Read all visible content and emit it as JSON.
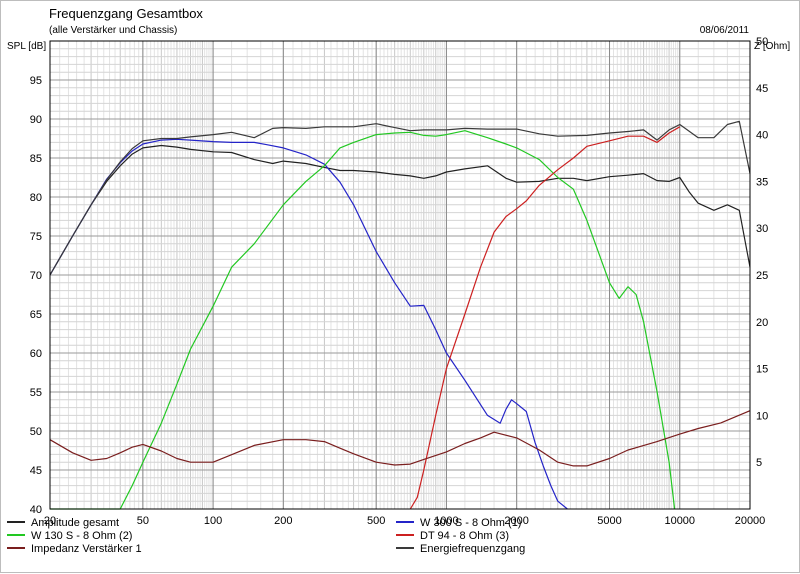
{
  "header": {
    "title": "Frequenzgang Gesamtbox",
    "subtitle": "(alle Verstärker und Chassis)",
    "date": "08/06/2011"
  },
  "chart_data": {
    "type": "line",
    "title": "Frequenzgang Gesamtbox",
    "subtitle": "(alle Verstärker und Chassis)",
    "xscale": "log",
    "xlim": [
      20,
      20000
    ],
    "ylabel_left": "SPL [dB]",
    "ylim_left": [
      40,
      100
    ],
    "ylabel_right": "Z [Ohm]",
    "ylim_right": [
      0,
      50
    ],
    "grid": true,
    "x_ticks": [
      "20",
      "50",
      "100",
      "200",
      "500",
      "1000",
      "2000",
      "5000",
      "10000",
      "20000"
    ],
    "y_ticks_left": [
      "40",
      "45",
      "50",
      "55",
      "60",
      "65",
      "70",
      "75",
      "80",
      "85",
      "90",
      "95"
    ],
    "y_ticks_right": [
      "5",
      "10",
      "15",
      "20",
      "25",
      "30",
      "35",
      "40",
      "45",
      "50"
    ],
    "legend_position": "bottom",
    "series": [
      {
        "name": "Amplitude gesamt",
        "color": "#222222",
        "axis": "left",
        "x": [
          20,
          25,
          30,
          35,
          40,
          45,
          50,
          60,
          70,
          80,
          100,
          120,
          150,
          180,
          200,
          250,
          300,
          350,
          400,
          500,
          600,
          700,
          800,
          900,
          1000,
          1200,
          1500,
          1800,
          2000,
          2500,
          3000,
          3500,
          4000,
          5000,
          6000,
          7000,
          8000,
          9000,
          10000,
          11000,
          12000,
          14000,
          16000,
          18000,
          20000
        ],
        "y": [
          70,
          75,
          79,
          82,
          84,
          85.5,
          86.3,
          86.6,
          86.4,
          86.1,
          85.8,
          85.7,
          84.8,
          84.3,
          84.6,
          84.3,
          83.8,
          83.4,
          83.4,
          83.2,
          82.9,
          82.7,
          82.4,
          82.7,
          83.2,
          83.6,
          84.0,
          82.4,
          81.9,
          82.0,
          82.4,
          82.4,
          82.1,
          82.6,
          82.8,
          83.0,
          82.1,
          82.0,
          82.5,
          80.6,
          79.2,
          78.3,
          79.0,
          78.3,
          71.0
        ]
      },
      {
        "name": "W 300 S - 8 Ohm (1)",
        "color": "#2424c8",
        "axis": "left",
        "x": [
          20,
          25,
          30,
          35,
          40,
          45,
          50,
          60,
          70,
          80,
          100,
          120,
          150,
          170,
          200,
          250,
          300,
          350,
          400,
          500,
          600,
          700,
          800,
          900,
          1000,
          1200,
          1500,
          1700,
          1800,
          1900,
          2000,
          2200,
          2400,
          2600,
          2800,
          3000,
          3300
        ],
        "y": [
          70,
          75,
          79,
          82.3,
          84.4,
          85.9,
          86.8,
          87.3,
          87.4,
          87.3,
          87.1,
          87.0,
          87.0,
          86.7,
          86.3,
          85.4,
          84.2,
          81.9,
          79.0,
          73.0,
          69.0,
          66.0,
          66.1,
          63.0,
          60.0,
          56.5,
          52.0,
          51.0,
          52.8,
          54.0,
          53.5,
          52.5,
          48.5,
          45.5,
          43.0,
          41.0,
          40
        ]
      },
      {
        "name": "W 130 S - 8 Ohm (2)",
        "color": "#22c822",
        "axis": "left",
        "x": [
          20,
          40,
          45,
          50,
          60,
          70,
          80,
          100,
          120,
          150,
          200,
          250,
          300,
          350,
          400,
          500,
          600,
          700,
          800,
          900,
          1000,
          1200,
          1500,
          1800,
          2000,
          2500,
          3000,
          3500,
          4000,
          5000,
          5500,
          6000,
          6500,
          7000,
          8000,
          9000,
          9500
        ],
        "y": [
          40,
          40,
          43.0,
          46.0,
          51.0,
          56.0,
          60.5,
          66.0,
          71.0,
          74.0,
          79.0,
          82.0,
          84.0,
          86.3,
          87.0,
          88.0,
          88.2,
          88.3,
          87.9,
          87.8,
          88.0,
          88.5,
          87.6,
          86.8,
          86.3,
          84.8,
          82.5,
          81.0,
          77.0,
          69.0,
          67.0,
          68.5,
          67.5,
          64.0,
          55.0,
          46.0,
          40
        ]
      },
      {
        "name": "DT 94 - 8 Ohm (3)",
        "color": "#cc2020",
        "axis": "left",
        "x": [
          700,
          750,
          800,
          900,
          1000,
          1200,
          1400,
          1600,
          1800,
          2000,
          2200,
          2500,
          3000,
          3500,
          4000,
          5000,
          6000,
          7000,
          8000,
          9000,
          10000
        ],
        "y": [
          40,
          41.5,
          45.0,
          52.0,
          58.0,
          65.0,
          71.0,
          75.5,
          77.5,
          78.5,
          79.5,
          81.5,
          83.5,
          85.0,
          86.5,
          87.2,
          87.8,
          87.8,
          87.0,
          88.2,
          89.0
        ]
      },
      {
        "name": "Impedanz Verstärker 1",
        "color": "#7a1e1e",
        "axis": "right",
        "x": [
          20,
          25,
          30,
          35,
          40,
          45,
          50,
          60,
          70,
          80,
          100,
          120,
          150,
          200,
          250,
          300,
          350,
          400,
          500,
          600,
          700,
          800,
          1000,
          1200,
          1400,
          1600,
          2000,
          2500,
          3000,
          3500,
          4000,
          5000,
          6000,
          8000,
          10000,
          12000,
          15000,
          20000
        ],
        "y": [
          7.4,
          6.0,
          5.2,
          5.4,
          6.0,
          6.6,
          6.9,
          6.2,
          5.4,
          5.0,
          5.0,
          5.8,
          6.8,
          7.4,
          7.4,
          7.2,
          6.5,
          5.9,
          5.0,
          4.7,
          4.8,
          5.3,
          6.1,
          7.0,
          7.6,
          8.2,
          7.6,
          6.3,
          5.0,
          4.6,
          4.6,
          5.4,
          6.3,
          7.2,
          8.0,
          8.6,
          9.2,
          10.5
        ]
      },
      {
        "name": "Energiefrequenzgang",
        "color": "#3a3a3a",
        "axis": "left",
        "x": [
          20,
          25,
          30,
          35,
          40,
          45,
          50,
          60,
          70,
          80,
          100,
          120,
          150,
          180,
          200,
          250,
          300,
          400,
          500,
          600,
          700,
          800,
          1000,
          1200,
          1500,
          2000,
          2500,
          3000,
          4000,
          5000,
          6000,
          7000,
          8000,
          9000,
          10000,
          12000,
          14000,
          16000,
          18000,
          20000
        ],
        "y": [
          70,
          75,
          79,
          82.2,
          84.5,
          86.2,
          87.2,
          87.5,
          87.5,
          87.7,
          88.0,
          88.3,
          87.6,
          88.8,
          88.9,
          88.8,
          89.0,
          89.0,
          89.4,
          88.9,
          88.5,
          88.6,
          88.6,
          88.8,
          88.7,
          88.7,
          88.1,
          87.8,
          87.9,
          88.2,
          88.4,
          88.6,
          87.3,
          88.6,
          89.3,
          87.6,
          87.6,
          89.3,
          89.7,
          83.0
        ]
      }
    ]
  }
}
